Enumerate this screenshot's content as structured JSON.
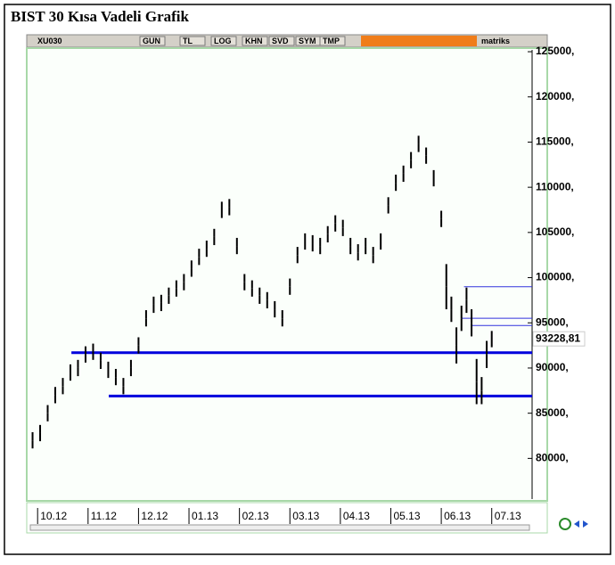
{
  "chart_data": {
    "type": "ohlc",
    "title": "BIST 30 Kısa Vadeli Grafik",
    "toolbar": [
      "XU030",
      "GUN",
      "TL",
      "LOG",
      "KHN",
      "SVD",
      "SYM",
      "TMP",
      "matriks"
    ],
    "color": "#000000",
    "x": [
      -0.1,
      0.05,
      0.2,
      0.35,
      0.5,
      0.65,
      0.8,
      0.95,
      1.1,
      1.25,
      1.4,
      1.55,
      1.7,
      1.85,
      2.0,
      2.15,
      2.3,
      2.45,
      2.6,
      2.75,
      2.9,
      3.05,
      3.2,
      3.35,
      3.5,
      3.65,
      3.8,
      3.95,
      4.1,
      4.25,
      4.4,
      4.55,
      4.7,
      4.85,
      5.0,
      5.15,
      5.3,
      5.45,
      5.6,
      5.75,
      5.9,
      6.05,
      6.2,
      6.35,
      6.5,
      6.65,
      6.8,
      6.95,
      7.1,
      7.25,
      7.4,
      7.55,
      7.7,
      7.85,
      8.0,
      8.1,
      8.2,
      8.3,
      8.4,
      8.5,
      8.6,
      8.7,
      8.8,
      8.9,
      9.0
    ],
    "high": [
      82900,
      83700,
      85900,
      87900,
      88900,
      90400,
      90900,
      92400,
      92700,
      91700,
      90700,
      89900,
      88900,
      90900,
      93400,
      96400,
      97900,
      98100,
      98900,
      99700,
      100400,
      101900,
      103200,
      104100,
      105400,
      108400,
      108700,
      104400,
      100400,
      99700,
      98900,
      98400,
      97400,
      96400,
      99900,
      103400,
      104900,
      104700,
      104400,
      105700,
      106900,
      106400,
      104400,
      103700,
      104400,
      103400,
      104900,
      108900,
      111400,
      112400,
      113900,
      115700,
      114400,
      111900,
      107400,
      101500,
      97900,
      94500,
      96900,
      98900,
      96500,
      91000,
      89000,
      93000,
      94100
    ],
    "low": [
      81100,
      81900,
      84100,
      86100,
      87100,
      88600,
      89100,
      90600,
      90900,
      89900,
      88900,
      88100,
      87100,
      89100,
      91600,
      94600,
      96100,
      96300,
      97100,
      97900,
      98600,
      100100,
      101400,
      102300,
      103600,
      106600,
      106900,
      102600,
      98600,
      97900,
      97100,
      96600,
      95600,
      94600,
      98100,
      101600,
      103100,
      102900,
      102600,
      103900,
      105100,
      104600,
      102600,
      101900,
      102600,
      101600,
      103100,
      107100,
      109600,
      110600,
      112100,
      113900,
      112600,
      110100,
      105600,
      96500,
      95100,
      90500,
      94100,
      96100,
      93500,
      86000,
      86000,
      90000,
      92300
    ],
    "xlim": [
      -0.18,
      9.8
    ],
    "ylim": [
      75500,
      125200
    ],
    "xticks": [
      {
        "value": 0,
        "label": "10.12"
      },
      {
        "value": 1,
        "label": "11.12"
      },
      {
        "value": 2,
        "label": "12.12"
      },
      {
        "value": 3,
        "label": "01.13"
      },
      {
        "value": 4,
        "label": "02.13"
      },
      {
        "value": 5,
        "label": "03.13"
      },
      {
        "value": 6,
        "label": "04.13"
      },
      {
        "value": 7,
        "label": "05.13"
      },
      {
        "value": 8,
        "label": "06.13"
      },
      {
        "value": 9,
        "label": "07.13"
      }
    ],
    "yticks": [
      {
        "value": 80000,
        "label": "80000,"
      },
      {
        "value": 85000,
        "label": "85000,"
      },
      {
        "value": 90000,
        "label": "90000,"
      },
      {
        "value": 95000,
        "label": "95000,"
      },
      {
        "value": 100000,
        "label": "100000,"
      },
      {
        "value": 105000,
        "label": "105000,"
      },
      {
        "value": 110000,
        "label": "110000,"
      },
      {
        "value": 115000,
        "label": "115000,"
      },
      {
        "value": 120000,
        "label": "120000,"
      },
      {
        "value": 125000,
        "label": "125000,"
      }
    ],
    "hlines": [
      {
        "value": 91700,
        "x_start": 0.67,
        "color": "#0000dd",
        "width": 3
      },
      {
        "value": 86900,
        "x_start": 1.41,
        "color": "#0000dd",
        "width": 3
      },
      {
        "value": 99000,
        "x_start": 8.45,
        "color": "#3333dd",
        "width": 1
      },
      {
        "value": 95500,
        "x_start": 8.4,
        "color": "#3333dd",
        "width": 1
      },
      {
        "value": 94700,
        "x_start": 8.6,
        "color": "#3333dd",
        "width": 1
      }
    ],
    "price_label": {
      "value": 93228.81,
      "label": "93228,81"
    }
  }
}
